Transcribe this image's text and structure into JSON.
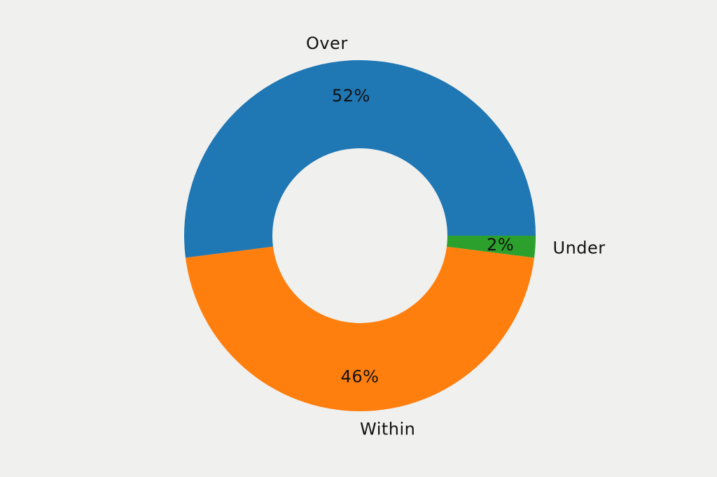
{
  "background_color": "#f0f0ee",
  "text_color": "#111111",
  "chart_data": {
    "type": "pie",
    "subtype": "donut",
    "title": "",
    "legend": "none",
    "categories": [
      "Over",
      "Within",
      "Under"
    ],
    "values": [
      52,
      46,
      2
    ],
    "pct_labels": [
      "52%",
      "46%",
      "2%"
    ],
    "colors": [
      "#1f77b4",
      "#ff7f0e",
      "#2ca02c"
    ],
    "start_angle_deg": 0,
    "direction": "counterclockwise",
    "labels_position": "outside",
    "pct_labels_position": "inside-ring"
  }
}
